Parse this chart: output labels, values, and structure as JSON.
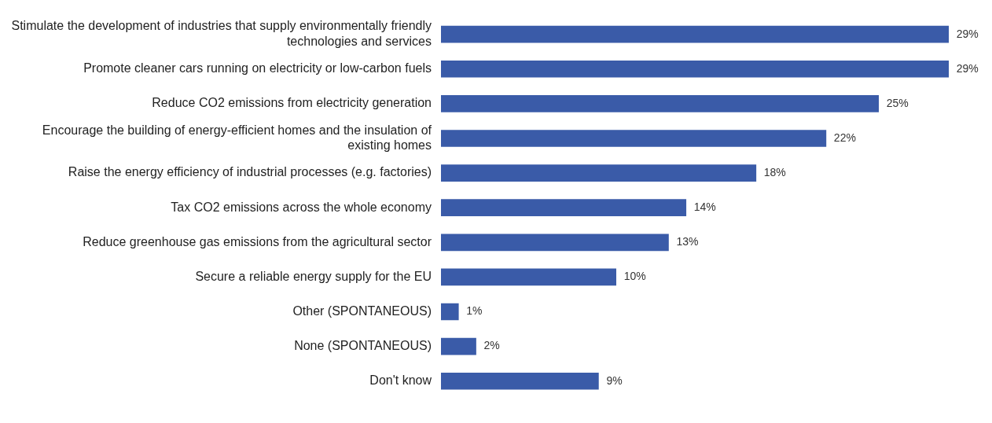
{
  "chart_data": {
    "type": "bar",
    "orientation": "horizontal",
    "categories": [
      "Stimulate the development of industries that supply environmentally friendly technologies and services",
      "Promote cleaner cars running on electricity or low-carbon fuels",
      "Reduce CO2 emissions from electricity generation",
      "Encourage the building of energy-efficient homes and the insulation of existing homes",
      "Raise the energy efficiency of industrial processes (e.g. factories)",
      "Tax CO2 emissions across the whole economy",
      "Reduce greenhouse gas emissions from the agricultural sector",
      "Secure a reliable energy supply for the EU",
      "Other (SPONTANEOUS)",
      "None (SPONTANEOUS)",
      "Don't know"
    ],
    "values": [
      29,
      29,
      25,
      22,
      18,
      14,
      13,
      10,
      1,
      2,
      9
    ],
    "value_labels": [
      "29%",
      "29%",
      "25%",
      "22%",
      "18%",
      "14%",
      "13%",
      "10%",
      "1%",
      "2%",
      "9%"
    ],
    "color": "#3a5ba8",
    "legend": false,
    "grid": false
  }
}
